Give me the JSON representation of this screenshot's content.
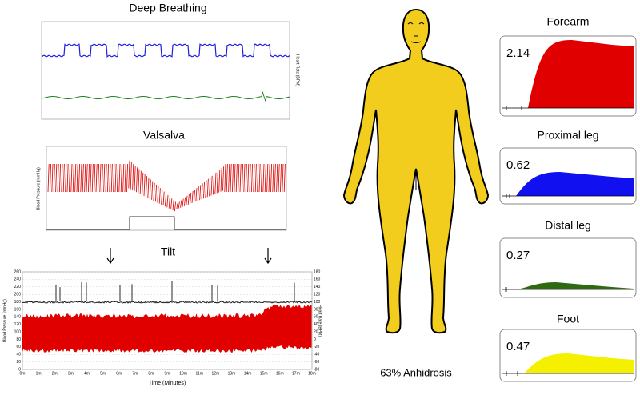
{
  "panels": {
    "deep_breathing": {
      "title": "Deep Breathing",
      "y2_label": "Heart Rate (BPM)"
    },
    "valsalva": {
      "title": "Valsalva",
      "y_label": "Blood Pressure (mmHg)"
    },
    "tilt": {
      "title": "Tilt",
      "y_label": "Blood Pressure (mmHg)",
      "y2_label": "Heart Rate (BPM)",
      "x_label": "Time (Minutes)",
      "yticks": [
        260,
        240,
        220,
        200,
        180,
        160,
        140,
        120,
        100,
        80,
        60,
        40,
        20,
        0
      ],
      "y2ticks": [
        180,
        160,
        140,
        120,
        100,
        80,
        60,
        40,
        20,
        0,
        -20,
        -40,
        -60,
        -80
      ],
      "xticks": [
        "0m",
        "1m",
        "2m",
        "3m",
        "4m",
        "5m",
        "6m",
        "7m",
        "8m",
        "9m",
        "10m",
        "11m",
        "12m",
        "13m",
        "14m",
        "15m",
        "16m",
        "17m",
        "18m"
      ]
    }
  },
  "body": {
    "caption": "63% Anhidrosis"
  },
  "sweat": [
    {
      "title": "Forearm",
      "value": 2.14,
      "color": "#e00000"
    },
    {
      "title": "Proximal leg",
      "value": 0.62,
      "color": "#1010f0"
    },
    {
      "title": "Distal leg",
      "value": 0.27,
      "color": "#2e6b10"
    },
    {
      "title": "Foot",
      "value": 0.47,
      "color": "#f5f000"
    }
  ]
}
